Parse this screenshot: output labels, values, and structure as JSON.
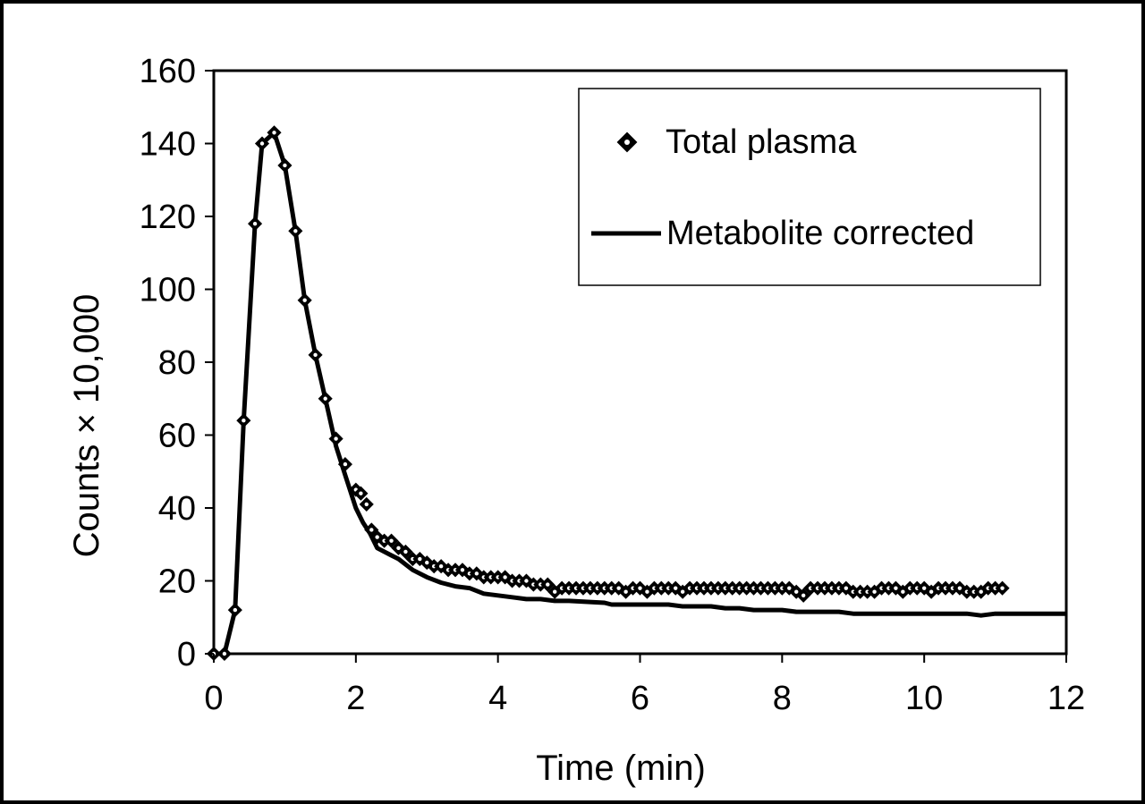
{
  "chart_data": {
    "type": "line",
    "title": "",
    "xlabel": "Time (min)",
    "ylabel": "Counts × 10,000",
    "xlim": [
      0,
      12
    ],
    "ylim": [
      0,
      160
    ],
    "xticks": [
      0,
      2,
      4,
      6,
      8,
      10,
      12
    ],
    "yticks": [
      0,
      20,
      40,
      60,
      80,
      100,
      120,
      140,
      160
    ],
    "grid": false,
    "legend_position": "top-right",
    "series": [
      {
        "name": "Total plasma",
        "style": "markers",
        "marker": "diamond",
        "color": "#000000",
        "x": [
          0.0,
          0.15,
          0.3,
          0.42,
          0.58,
          0.68,
          0.85,
          1.0,
          1.15,
          1.28,
          1.43,
          1.57,
          1.72,
          1.85,
          2.0,
          2.07,
          2.15,
          2.22,
          2.3,
          2.4,
          2.5,
          2.6,
          2.7,
          2.8,
          2.9,
          3.0,
          3.1,
          3.2,
          3.3,
          3.4,
          3.5,
          3.6,
          3.7,
          3.8,
          3.9,
          4.0,
          4.1,
          4.2,
          4.3,
          4.4,
          4.5,
          4.6,
          4.7,
          4.8,
          4.9,
          5.0,
          5.1,
          5.2,
          5.3,
          5.4,
          5.5,
          5.6,
          5.7,
          5.8,
          5.9,
          6.0,
          6.1,
          6.2,
          6.3,
          6.4,
          6.5,
          6.6,
          6.7,
          6.8,
          6.9,
          7.0,
          7.1,
          7.2,
          7.3,
          7.4,
          7.5,
          7.6,
          7.7,
          7.8,
          7.9,
          8.0,
          8.1,
          8.2,
          8.3,
          8.4,
          8.5,
          8.6,
          8.7,
          8.8,
          8.9,
          9.0,
          9.1,
          9.2,
          9.3,
          9.4,
          9.5,
          9.6,
          9.7,
          9.8,
          9.9,
          10.0,
          10.1,
          10.2,
          10.3,
          10.4,
          10.5,
          10.6,
          10.7,
          10.8,
          10.9,
          11.0,
          11.1
        ],
        "y": [
          0,
          0,
          12,
          64,
          118,
          140,
          143,
          134,
          116,
          97,
          82,
          70,
          59,
          52,
          45,
          44,
          41,
          34,
          32,
          31,
          31,
          29,
          28,
          26,
          26,
          25,
          24,
          24,
          23,
          23,
          23,
          22,
          22,
          21,
          21,
          21,
          21,
          20,
          20,
          20,
          19,
          19,
          19,
          17,
          18,
          18,
          18,
          18,
          18,
          18,
          18,
          18,
          18,
          17,
          18,
          18,
          17,
          18,
          18,
          18,
          18,
          17,
          18,
          18,
          18,
          18,
          18,
          18,
          18,
          18,
          18,
          18,
          18,
          18,
          18,
          18,
          18,
          17,
          16,
          18,
          18,
          18,
          18,
          18,
          18,
          17,
          17,
          17,
          17,
          18,
          18,
          18,
          17,
          18,
          18,
          18,
          17,
          18,
          18,
          18,
          18,
          17,
          17,
          17,
          18,
          18,
          18
        ]
      },
      {
        "name": "Metabolite corrected",
        "style": "line",
        "color": "#000000",
        "x": [
          0.0,
          0.15,
          0.3,
          0.42,
          0.58,
          0.68,
          0.85,
          1.0,
          1.15,
          1.28,
          1.43,
          1.57,
          1.72,
          1.85,
          2.0,
          2.1,
          2.2,
          2.3,
          2.5,
          2.6,
          2.8,
          3.0,
          3.2,
          3.4,
          3.6,
          3.8,
          4.0,
          4.2,
          4.4,
          4.6,
          4.8,
          5.0,
          5.5,
          5.6,
          6.0,
          6.4,
          6.6,
          6.8,
          7.0,
          7.2,
          7.4,
          7.6,
          8.0,
          8.2,
          8.4,
          8.6,
          8.8,
          9.0,
          9.5,
          10.0,
          10.2,
          10.5,
          10.6,
          10.8,
          11.0,
          11.5,
          12.0
        ],
        "y": [
          0,
          0,
          12,
          64,
          118,
          140,
          143,
          134,
          116,
          97,
          82,
          70,
          57,
          49,
          40,
          36,
          33,
          29,
          27,
          26,
          23,
          21,
          19.5,
          18.5,
          18,
          16.5,
          16,
          15.5,
          15,
          15,
          14.5,
          14.5,
          14,
          13.5,
          13.5,
          13.5,
          13,
          13,
          13,
          12.5,
          12.5,
          12,
          12,
          11.5,
          11.5,
          11.5,
          11.5,
          11,
          11,
          11,
          11,
          11,
          11,
          10.5,
          11,
          11,
          11
        ]
      }
    ]
  }
}
